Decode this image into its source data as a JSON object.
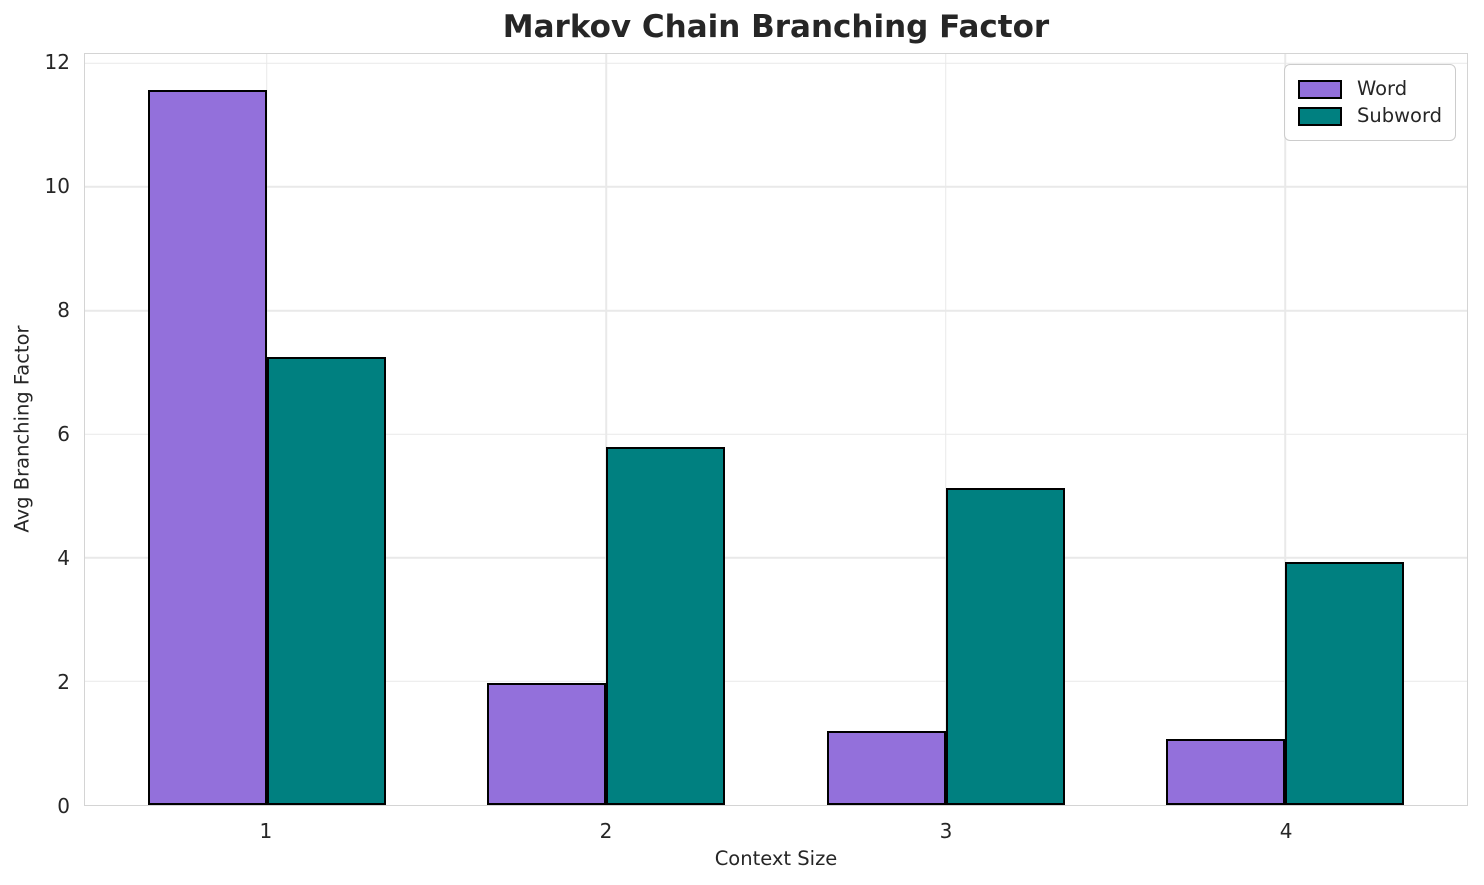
{
  "figure": {
    "title": "Markov Chain Branching Factor"
  },
  "chart_data": {
    "type": "bar",
    "title": "Markov Chain Branching Factor",
    "xlabel": "Context Size",
    "ylabel": "Avg Branching Factor",
    "categories": [
      "1",
      "2",
      "3",
      "4"
    ],
    "series": [
      {
        "name": "Word",
        "color": "#9370DB",
        "values": [
          11.57,
          1.98,
          1.2,
          1.06
        ]
      },
      {
        "name": "Subword",
        "color": "#008080",
        "values": [
          7.25,
          5.8,
          5.13,
          3.93
        ]
      }
    ],
    "bar_edge_color": "#000000",
    "bar_width": 0.35,
    "xlim": [
      0.465,
      4.535
    ],
    "ylim": [
      0,
      12.15
    ],
    "yticks": [
      0,
      2,
      4,
      6,
      8,
      10,
      12
    ],
    "grid": true,
    "legend_position": "upper right",
    "colors": {
      "grid": "#e9e9e9",
      "spine": "#d4d4d4",
      "text": "#262626",
      "background": "#ffffff"
    }
  }
}
